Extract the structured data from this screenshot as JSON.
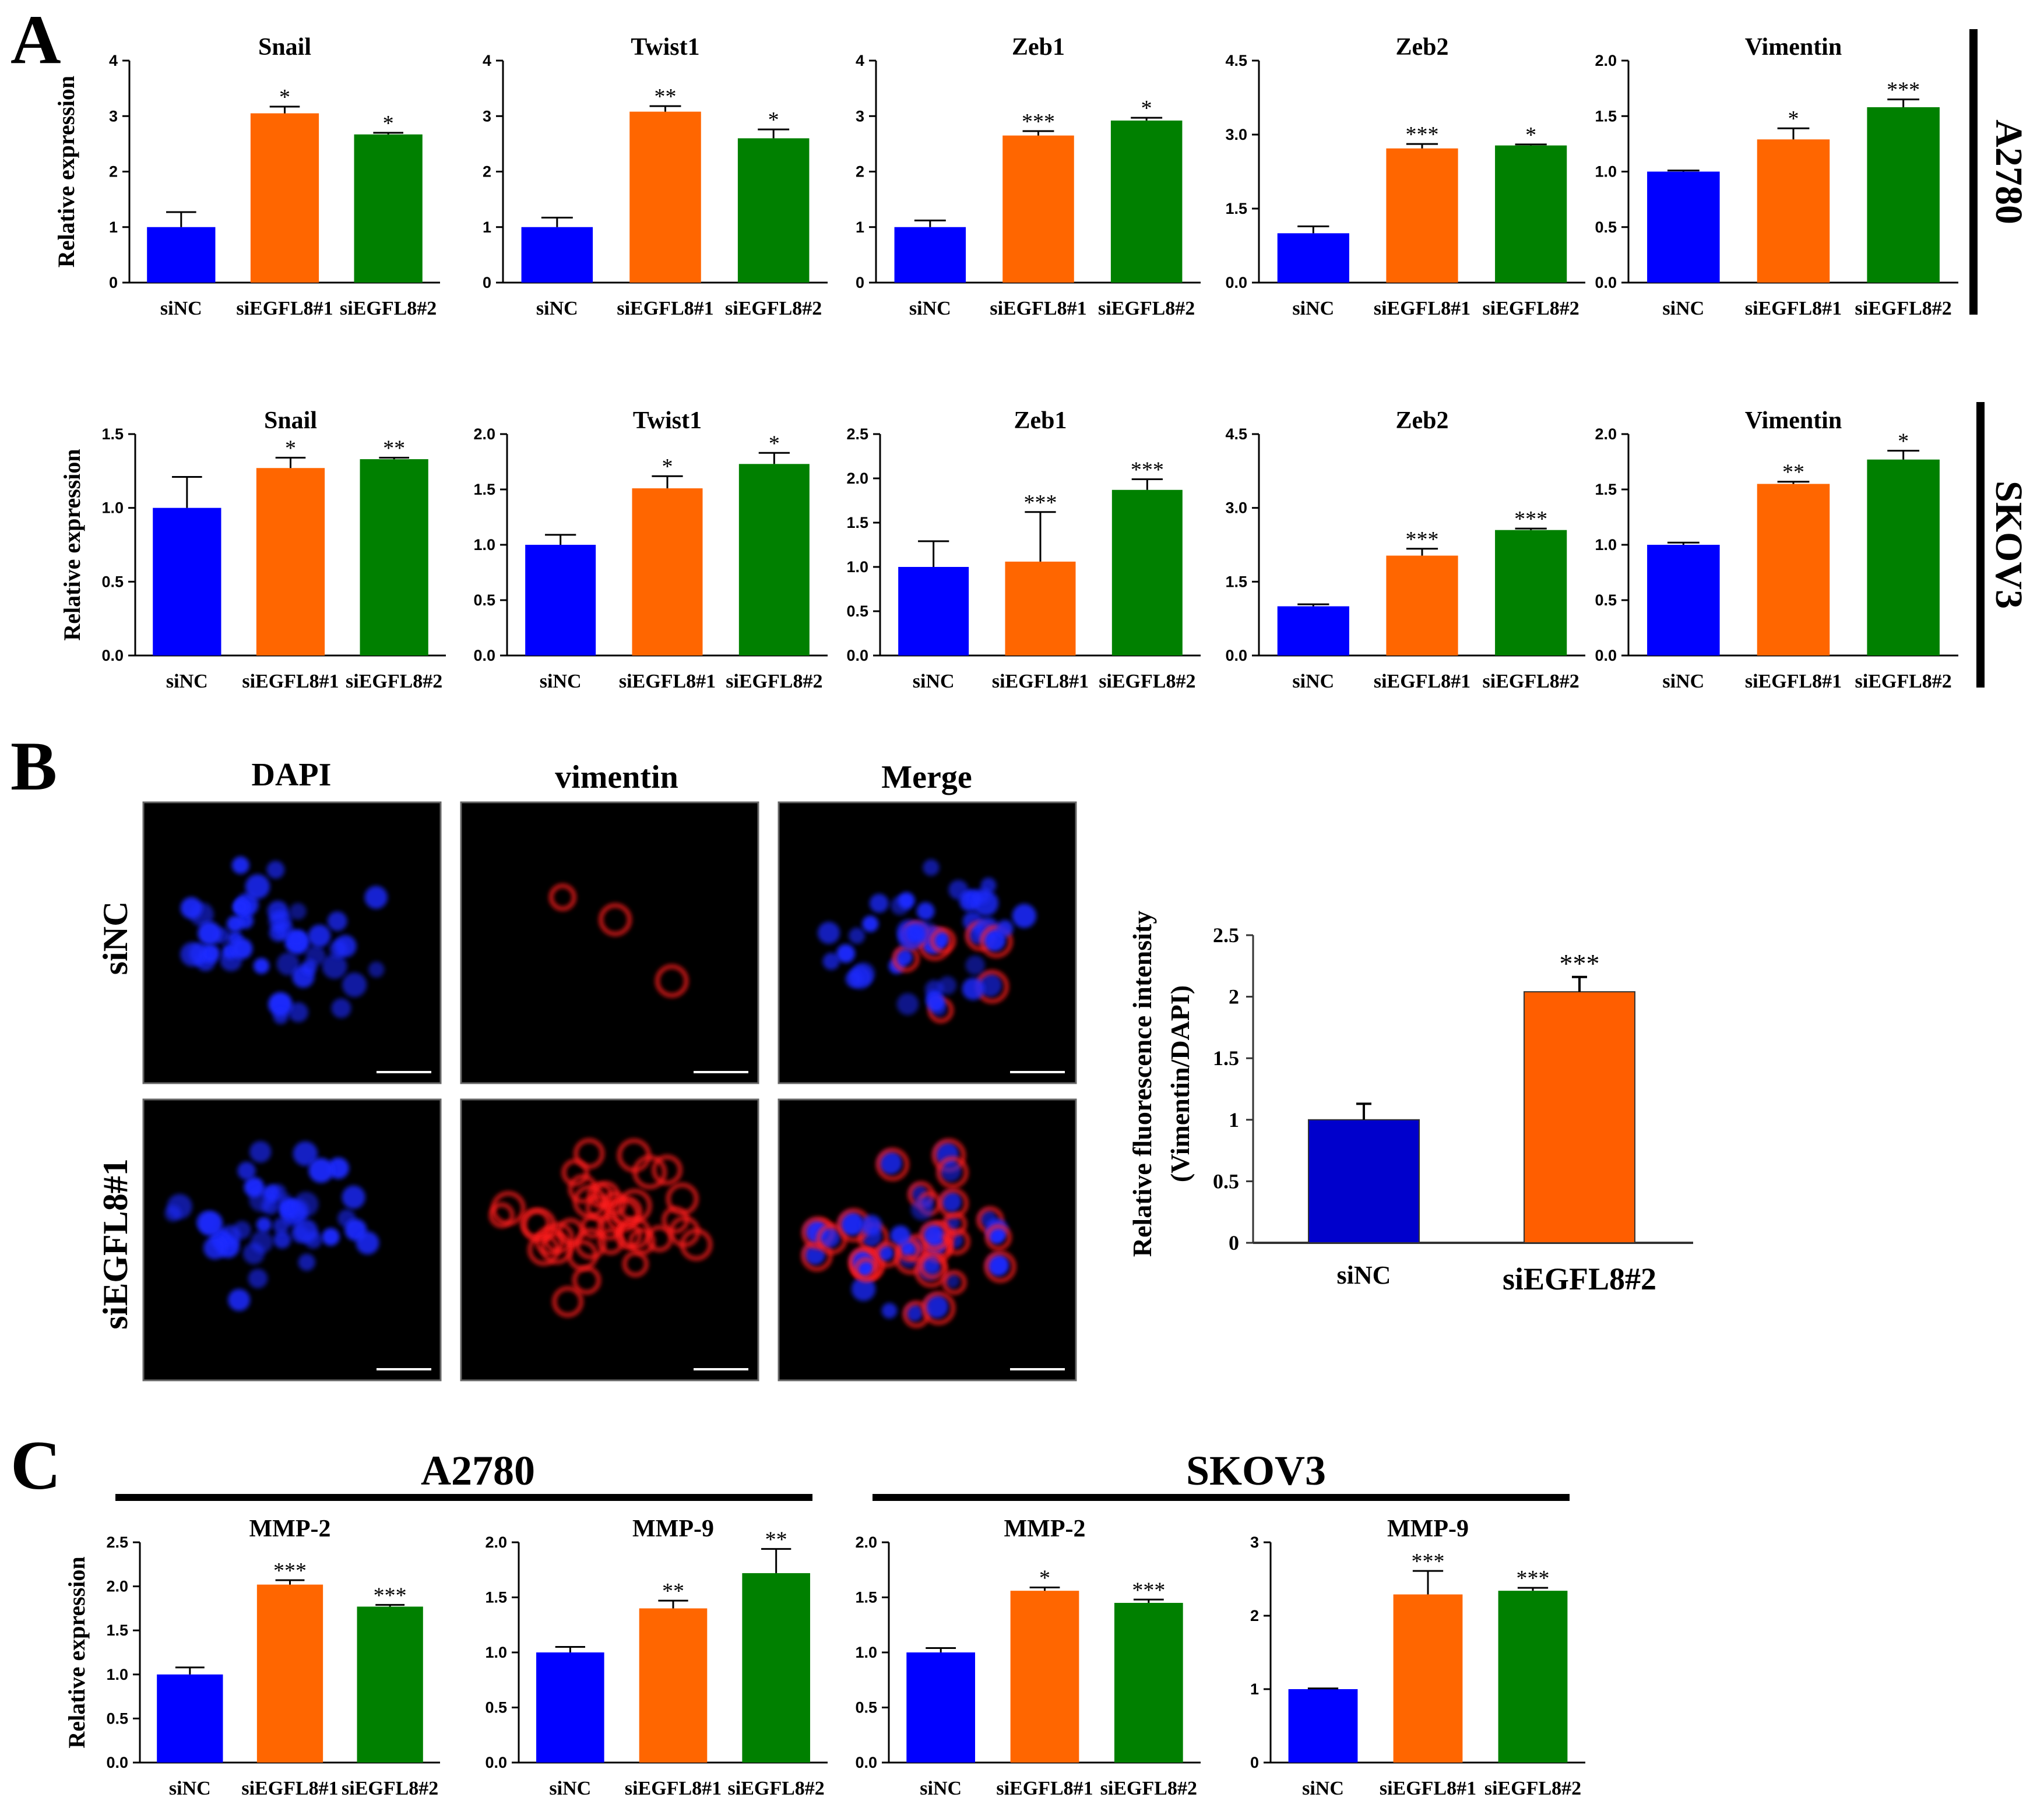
{
  "panels": {
    "A": {
      "letter": "A",
      "row_labels": [
        "A2780",
        "SKOV3"
      ]
    },
    "B": {
      "letter": "B",
      "column_titles": [
        "DAPI",
        "vimentin",
        "Merge"
      ],
      "row_labels": [
        "siNC",
        "siEGFL8#1"
      ]
    },
    "C": {
      "letter": "C",
      "group_labels": [
        "A2780",
        "SKOV3"
      ]
    }
  },
  "colors": {
    "siNC": "#0000ff",
    "siEGFL8#1": "#ff6600",
    "siEGFL8#2": "#008000",
    "panelB_siNC": "#0000cc",
    "panelB_si": "#ff5e00"
  },
  "chart_data": [
    {
      "id": "a1",
      "type": "bar",
      "title": "Snail",
      "ylabel": "Relative expression",
      "categories": [
        "siNC",
        "siEGFL8#1",
        "siEGFL8#2"
      ],
      "values": [
        1.0,
        3.05,
        2.67
      ],
      "errors": [
        0.27,
        0.12,
        0.03
      ],
      "sig": [
        "",
        "*",
        "*"
      ],
      "ylim": [
        0,
        4
      ],
      "ticks": [
        "0",
        "1",
        "2",
        "3",
        "4"
      ],
      "tick_values": [
        0,
        1,
        2,
        3,
        4
      ]
    },
    {
      "id": "a2",
      "type": "bar",
      "title": "Twist1",
      "ylabel": "",
      "categories": [
        "siNC",
        "siEGFL8#1",
        "siEGFL8#2"
      ],
      "values": [
        1.0,
        3.08,
        2.6
      ],
      "errors": [
        0.17,
        0.1,
        0.16
      ],
      "sig": [
        "",
        "**",
        "*"
      ],
      "ylim": [
        0,
        4
      ],
      "ticks": [
        "0",
        "1",
        "2",
        "3",
        "4"
      ],
      "tick_values": [
        0,
        1,
        2,
        3,
        4
      ]
    },
    {
      "id": "a3",
      "type": "bar",
      "title": "Zeb1",
      "ylabel": "",
      "categories": [
        "siNC",
        "siEGFL8#1",
        "siEGFL8#2"
      ],
      "values": [
        1.0,
        2.65,
        2.92
      ],
      "errors": [
        0.12,
        0.08,
        0.05
      ],
      "sig": [
        "",
        "***",
        "*"
      ],
      "ylim": [
        0,
        4
      ],
      "ticks": [
        "0",
        "1",
        "2",
        "3",
        "4"
      ],
      "tick_values": [
        0,
        1,
        2,
        3,
        4
      ]
    },
    {
      "id": "a4",
      "type": "bar",
      "title": "Zeb2",
      "ylabel": "",
      "categories": [
        "siNC",
        "siEGFL8#1",
        "siEGFL8#2"
      ],
      "values": [
        1.0,
        2.72,
        2.78
      ],
      "errors": [
        0.14,
        0.09,
        0.02
      ],
      "sig": [
        "",
        "***",
        "*"
      ],
      "ylim": [
        0,
        4.5
      ],
      "ticks": [
        "0.0",
        "1.5",
        "3.0",
        "4.5"
      ],
      "tick_values": [
        0,
        1.5,
        3.0,
        4.5
      ]
    },
    {
      "id": "a5",
      "type": "bar",
      "title": "Vimentin",
      "ylabel": "",
      "categories": [
        "siNC",
        "siEGFL8#1",
        "siEGFL8#2"
      ],
      "values": [
        1.0,
        1.29,
        1.58
      ],
      "errors": [
        0.01,
        0.1,
        0.07
      ],
      "sig": [
        "",
        "*",
        "***"
      ],
      "ylim": [
        0,
        2.0
      ],
      "ticks": [
        "0.0",
        "0.5",
        "1.0",
        "1.5",
        "2.0"
      ],
      "tick_values": [
        0,
        0.5,
        1.0,
        1.5,
        2.0
      ]
    },
    {
      "id": "a6",
      "type": "bar",
      "title": "Snail",
      "ylabel": "Relative expression",
      "categories": [
        "siNC",
        "siEGFL8#1",
        "siEGFL8#2"
      ],
      "values": [
        1.0,
        1.27,
        1.33
      ],
      "errors": [
        0.21,
        0.07,
        0.01
      ],
      "sig": [
        "",
        "*",
        "**"
      ],
      "ylim": [
        0,
        1.5
      ],
      "ticks": [
        "0.0",
        "0.5",
        "1.0",
        "1.5"
      ],
      "tick_values": [
        0,
        0.5,
        1.0,
        1.5
      ]
    },
    {
      "id": "a7",
      "type": "bar",
      "title": "Twist1",
      "ylabel": "",
      "categories": [
        "siNC",
        "siEGFL8#1",
        "siEGFL8#2"
      ],
      "values": [
        1.0,
        1.51,
        1.73
      ],
      "errors": [
        0.09,
        0.11,
        0.1
      ],
      "sig": [
        "",
        "*",
        "*"
      ],
      "ylim": [
        0,
        2.0
      ],
      "ticks": [
        "0.0",
        "0.5",
        "1.0",
        "1.5",
        "2.0"
      ],
      "tick_values": [
        0,
        0.5,
        1.0,
        1.5,
        2.0
      ]
    },
    {
      "id": "a8",
      "type": "bar",
      "title": "Zeb1",
      "ylabel": "",
      "categories": [
        "siNC",
        "siEGFL8#1",
        "siEGFL8#2"
      ],
      "values": [
        1.0,
        1.06,
        1.87
      ],
      "errors": [
        0.29,
        0.56,
        0.12
      ],
      "sig": [
        "",
        "***",
        "***"
      ],
      "ylim": [
        0,
        2.5
      ],
      "ticks": [
        "0.0",
        "0.5",
        "1.0",
        "1.5",
        "2.0",
        "2.5"
      ],
      "tick_values": [
        0,
        0.5,
        1.0,
        1.5,
        2.0,
        2.5
      ]
    },
    {
      "id": "a9",
      "type": "bar",
      "title": "Zeb2",
      "ylabel": "",
      "categories": [
        "siNC",
        "siEGFL8#1",
        "siEGFL8#2"
      ],
      "values": [
        1.0,
        2.03,
        2.55
      ],
      "errors": [
        0.04,
        0.14,
        0.03
      ],
      "sig": [
        "",
        "***",
        "***"
      ],
      "ylim": [
        0,
        4.5
      ],
      "ticks": [
        "0.0",
        "1.5",
        "3.0",
        "4.5"
      ],
      "tick_values": [
        0,
        1.5,
        3.0,
        4.5
      ]
    },
    {
      "id": "a10",
      "type": "bar",
      "title": "Vimentin",
      "ylabel": "",
      "categories": [
        "siNC",
        "siEGFL8#1",
        "siEGFL8#2"
      ],
      "values": [
        1.0,
        1.55,
        1.77
      ],
      "errors": [
        0.02,
        0.02,
        0.08
      ],
      "sig": [
        "",
        "**",
        "*"
      ],
      "ylim": [
        0,
        2.0
      ],
      "ticks": [
        "0.0",
        "0.5",
        "1.0",
        "1.5",
        "2.0"
      ],
      "tick_values": [
        0,
        0.5,
        1.0,
        1.5,
        2.0
      ]
    },
    {
      "id": "b1",
      "type": "bar",
      "title": "",
      "ylabel": "Relative fluorescence intensity",
      "ylabel2": "(Vimentin/DAPI)",
      "categories": [
        "siNC",
        "siEGFL8#2"
      ],
      "values": [
        1.0,
        2.04
      ],
      "errors": [
        0.13,
        0.12
      ],
      "sig": [
        "",
        "***"
      ],
      "ylim": [
        0,
        2.5
      ],
      "ticks": [
        "0",
        "0.5",
        "1",
        "1.5",
        "2",
        "2.5"
      ],
      "tick_values": [
        0,
        0.5,
        1,
        1.5,
        2,
        2.5
      ]
    },
    {
      "id": "c1",
      "type": "bar",
      "title": "MMP-2",
      "ylabel": "Relative expression",
      "categories": [
        "siNC",
        "siEGFL8#1",
        "siEGFL8#2"
      ],
      "values": [
        1.0,
        2.02,
        1.77
      ],
      "errors": [
        0.08,
        0.05,
        0.02
      ],
      "sig": [
        "",
        "***",
        "***"
      ],
      "ylim": [
        0,
        2.5
      ],
      "ticks": [
        "0.0",
        "0.5",
        "1.0",
        "1.5",
        "2.0",
        "2.5"
      ],
      "tick_values": [
        0,
        0.5,
        1.0,
        1.5,
        2.0,
        2.5
      ]
    },
    {
      "id": "c2",
      "type": "bar",
      "title": "MMP-9",
      "ylabel": "",
      "categories": [
        "siNC",
        "siEGFL8#1",
        "siEGFL8#2"
      ],
      "values": [
        1.0,
        1.4,
        1.72
      ],
      "errors": [
        0.05,
        0.07,
        0.22
      ],
      "sig": [
        "",
        "**",
        "**"
      ],
      "ylim": [
        0,
        2.0
      ],
      "ticks": [
        "0.0",
        "0.5",
        "1.0",
        "1.5",
        "2.0"
      ],
      "tick_values": [
        0,
        0.5,
        1.0,
        1.5,
        2.0
      ]
    },
    {
      "id": "c3",
      "type": "bar",
      "title": "MMP-2",
      "ylabel": "",
      "categories": [
        "siNC",
        "siEGFL8#1",
        "siEGFL8#2"
      ],
      "values": [
        1.0,
        1.56,
        1.45
      ],
      "errors": [
        0.04,
        0.03,
        0.03
      ],
      "sig": [
        "",
        "*",
        "***"
      ],
      "ylim": [
        0,
        2.0
      ],
      "ticks": [
        "0.0",
        "0.5",
        "1.0",
        "1.5",
        "2.0"
      ],
      "tick_values": [
        0,
        0.5,
        1.0,
        1.5,
        2.0
      ]
    },
    {
      "id": "c4",
      "type": "bar",
      "title": "MMP-9",
      "ylabel": "",
      "categories": [
        "siNC",
        "siEGFL8#1",
        "siEGFL8#2"
      ],
      "values": [
        1.0,
        2.29,
        2.34
      ],
      "errors": [
        0.01,
        0.32,
        0.04
      ],
      "sig": [
        "",
        "***",
        "***"
      ],
      "ylim": [
        0,
        3
      ],
      "ticks": [
        "0",
        "1",
        "2",
        "3"
      ],
      "tick_values": [
        0,
        1,
        2,
        3
      ]
    }
  ]
}
